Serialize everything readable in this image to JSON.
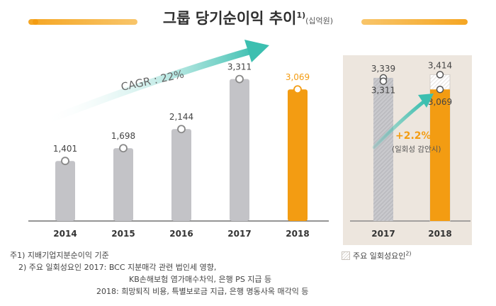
{
  "title": {
    "main": "그룹 당기순이익 추이",
    "sup": "1)",
    "unit": "(십억원)"
  },
  "colors": {
    "accent": "#f39c12",
    "grey": "#c3c3c7",
    "teal": "#3cbfb0",
    "panel_bg": "#ede6de"
  },
  "chart_data": [
    {
      "type": "bar",
      "categories": [
        "2014",
        "2015",
        "2016",
        "2017",
        "2018"
      ],
      "values": [
        1401,
        1698,
        2144,
        3311,
        3069
      ],
      "value_labels": [
        "1,401",
        "1,698",
        "2,144",
        "3,311",
        "3,069"
      ],
      "highlight_index": 4,
      "ylim": [
        0,
        3800
      ],
      "annotation": "CAGR :  22%"
    },
    {
      "type": "bar",
      "categories": [
        "2017",
        "2018"
      ],
      "values": [
        3311,
        3069
      ],
      "value_labels": [
        "3,311",
        "3,069"
      ],
      "adjusted_values": [
        3339,
        3414
      ],
      "adjusted_labels": [
        "3,339",
        "3,414"
      ],
      "ylim": [
        0,
        3800
      ],
      "annotation_value": "+2.2%",
      "annotation_note": "(일회성 감안시)"
    }
  ],
  "legend": {
    "label": "주요 일회성요인",
    "sup": "2)"
  },
  "notes": [
    "주1) 지배기업지분순이익 기준",
    "2) 주요 일회성요인 2017: BCC 지분매각 관련 법인세 영향,",
    "KB손해보험 염가매수차익, 은행 PS 지급 등",
    "2018: 희망퇴직 비용, 특별보로금 지급, 은행 명동사옥 매각익 등"
  ]
}
